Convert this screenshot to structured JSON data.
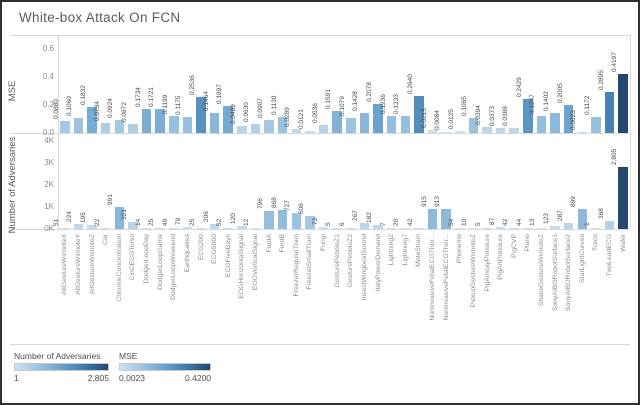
{
  "chart_data": {
    "type": "bar",
    "title": "White-box Attack On FCN",
    "categories": [
      "AllGestureWiimoteX",
      "AllGestureWiimoteY",
      "AllGestureWiimoteZ",
      "Car",
      "ChlorineConcentration",
      "CinCECGTorso",
      "DodgerLoopDay",
      "DodgerLoopGame",
      "DodgerLoopWeekend",
      "Earthquakes",
      "ECG200",
      "ECG5000",
      "ECGFiveDays",
      "EOGHorizontalSignal",
      "EOGVerticalSignal",
      "FordA",
      "FordB",
      "FreezerRegularTrain",
      "FreezerSmallTrain",
      "Fungi",
      "GesturePebbleZ1",
      "GesturePebbleZ2",
      "InsectWingbeatSound",
      "ItalyPowerDemand",
      "Lightning2",
      "Lightning7",
      "MoteStrain",
      "NonInvasiveFetalECGThorax1",
      "NonInvasiveFetalECGThorax2",
      "Phoneme",
      "PickupGestureWiimoteZ",
      "PigAirwayPressure",
      "PigArtPressure",
      "PigCVP",
      "Plane",
      "ShakeGestureWiimoteZ",
      "SonyAIBORobotSurface1",
      "SonyAIBORobotSurface2",
      "StarLightCurves",
      "Trace",
      "TwoLeadECG",
      "Wafer"
    ],
    "series": [
      {
        "name": "MSE",
        "ylabel": "MSE",
        "ylim": [
          0,
          0.6
        ],
        "yticks": [
          "0.0",
          "0.2",
          "0.4",
          "0.6"
        ],
        "values": [
          0.088,
          0.106,
          0.1832,
          0.0734,
          0.0924,
          0.0672,
          0.1734,
          0.1721,
          0.1199,
          0.1175,
          0.2536,
          0.1464,
          0.1897,
          0.0489,
          0.063,
          0.0907,
          0.113,
          0.0289,
          0.0121,
          0.0536,
          0.1591,
          0.1079,
          0.1428,
          0.2078,
          0.1236,
          0.1233,
          0.264,
          0.0215,
          0.0084,
          0.0125,
          0.1065,
          0.0394,
          0.0373,
          0.0388,
          0.2429,
          0.1247,
          0.1402,
          0.2005,
          0.0023,
          0.1172,
          0.2895,
          0.4197
        ],
        "value_labels": [
          "0.0880",
          "0.1060",
          "0.1832",
          "0.0734",
          "0.0924",
          "0.0672",
          "0.1734",
          "0.1721",
          "0.1199",
          "0.1175",
          "0.2536",
          "0.1464",
          "0.1897",
          "0.0489",
          "0.0630",
          "0.0907",
          "0.1130",
          "0.0289",
          "0.0121",
          "0.0536",
          "0.1591",
          "0.1079",
          "0.1428",
          "0.2078",
          "0.1236",
          "0.1233",
          "0.2640",
          "0.0215",
          "0.0084",
          "0.0125",
          "0.1065",
          "0.0394",
          "0.0373",
          "0.0388",
          "0.2429",
          "0.1247",
          "0.1402",
          "0.2005",
          "0.0023",
          "0.1172",
          "0.2895",
          "0.4197"
        ],
        "color_domain": [
          0.0023,
          0.42
        ]
      },
      {
        "name": "Number of Adversaries",
        "ylabel": "Number of Adversaries",
        "ylim": [
          0,
          4000
        ],
        "yticks": [
          "0K",
          "1K",
          "2K",
          "3K",
          "4K"
        ],
        "values": [
          51,
          224,
          195,
          22,
          991,
          321,
          14,
          25,
          49,
          78,
          25,
          206,
          52,
          120,
          12,
          796,
          868,
          727,
          606,
          73,
          5,
          6,
          267,
          182,
          7,
          20,
          42,
          915,
          913,
          54,
          10,
          5,
          87,
          42,
          44,
          13,
          123,
          287,
          899,
          1,
          368,
          2805
        ],
        "value_labels": [
          "51",
          "224",
          "195",
          "22",
          "991",
          "321",
          "14",
          "25",
          "49",
          "78",
          "25",
          "206",
          "52",
          "120",
          "12",
          "796",
          "868",
          "727",
          "606",
          "73",
          "5",
          "6",
          "267",
          "182",
          "7",
          "20",
          "42",
          "915",
          "913",
          "54",
          "10",
          "5",
          "87",
          "42",
          "44",
          "13",
          "123",
          "287",
          "899",
          "1",
          "368",
          "2,805"
        ],
        "color_domain": [
          1,
          2805
        ]
      }
    ],
    "legend": [
      {
        "title": "Number of Adversaries",
        "min_label": "1",
        "max_label": "2,805"
      },
      {
        "title": "MSE",
        "min_label": "0.0023",
        "max_label": "0.4200"
      }
    ],
    "colors": {
      "ramp": [
        "#cfe0ef",
        "#9cc4e1",
        "#68a2ce",
        "#3d78ac",
        "#24476e"
      ],
      "grid_line": "#d9d9d9",
      "frame_border": "#2e2e2e"
    }
  }
}
